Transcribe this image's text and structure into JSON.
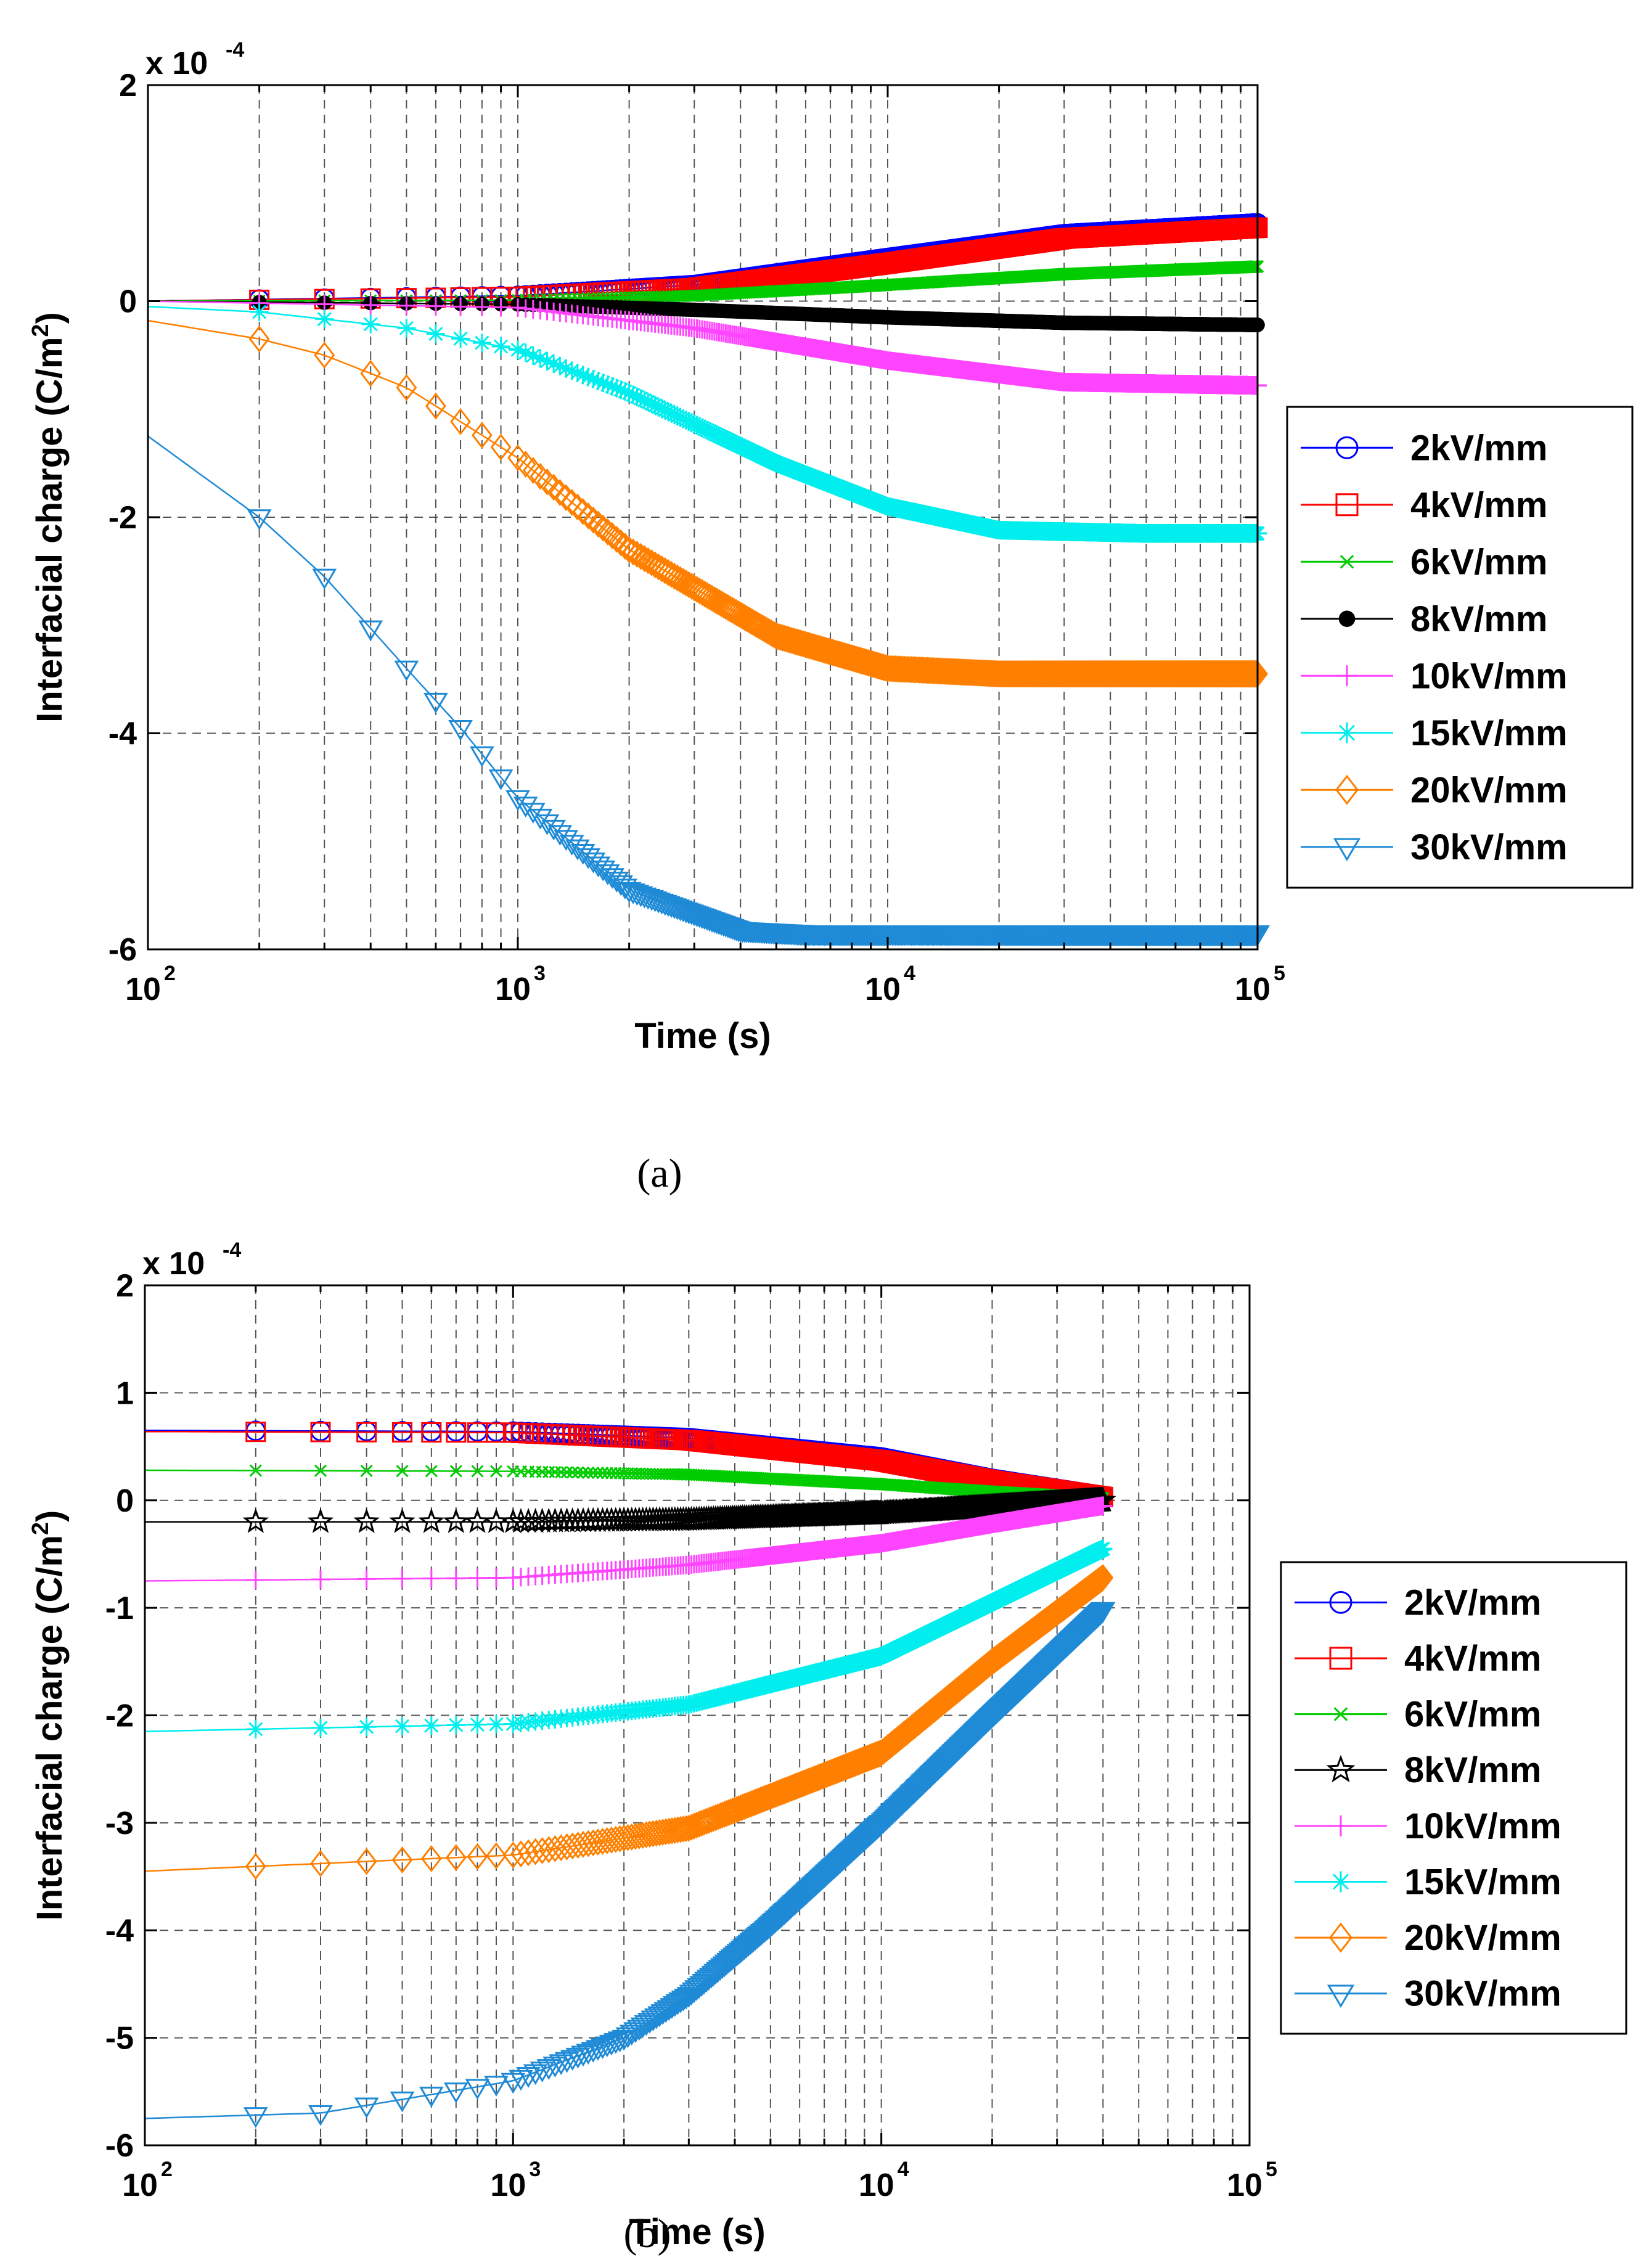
{
  "chart_data": [
    {
      "panel": "a",
      "caption": "(a)",
      "type": "line",
      "xscale": "log",
      "xlim": [
        100,
        100000
      ],
      "ylim": [
        -6,
        2
      ],
      "y_multiplier": "x 10",
      "y_exponent": "-4",
      "xlabel": "Time (s)",
      "ylabel_main": "Interfacial charge (C/m",
      "ylabel_sup": "2",
      "ylabel_end": ")",
      "grid": true,
      "legend_position": "outside-right",
      "x_ticks": [
        {
          "base": "10",
          "exp": "2"
        },
        {
          "base": "10",
          "exp": "3"
        },
        {
          "base": "10",
          "exp": "4"
        },
        {
          "base": "10",
          "exp": "5"
        }
      ],
      "y_ticks": [
        "2",
        "0",
        "-2",
        "-4",
        "-6"
      ],
      "y_tick_values": [
        2,
        0,
        -2,
        -4,
        -6
      ],
      "y_grid_values": [
        -4,
        -2,
        0
      ],
      "series": [
        {
          "name": "2kV/mm",
          "color": "#0000ff",
          "marker": "circle",
          "x": [
            100,
            1000,
            3000,
            10000,
            30000,
            100000
          ],
          "y": [
            0,
            0.05,
            0.15,
            0.4,
            0.62,
            0.72
          ]
        },
        {
          "name": "4kV/mm",
          "color": "#ff0000",
          "marker": "square",
          "x": [
            100,
            1000,
            3000,
            10000,
            30000,
            100000
          ],
          "y": [
            0,
            0.04,
            0.12,
            0.35,
            0.58,
            0.68
          ]
        },
        {
          "name": "6kV/mm",
          "color": "#00cc00",
          "marker": "x",
          "x": [
            100,
            1000,
            3000,
            10000,
            30000,
            100000
          ],
          "y": [
            0,
            0.01,
            0.05,
            0.15,
            0.25,
            0.32
          ]
        },
        {
          "name": "8kV/mm",
          "color": "#000000",
          "marker": "dot",
          "x": [
            100,
            1000,
            3000,
            10000,
            30000,
            100000
          ],
          "y": [
            0,
            -0.03,
            -0.08,
            -0.15,
            -0.2,
            -0.22
          ]
        },
        {
          "name": "10kV/mm",
          "color": "#ff44ff",
          "marker": "plus",
          "x": [
            100,
            1000,
            3000,
            10000,
            30000,
            100000
          ],
          "y": [
            0,
            -0.06,
            -0.25,
            -0.55,
            -0.75,
            -0.78
          ]
        },
        {
          "name": "15kV/mm",
          "color": "#00eeee",
          "marker": "star",
          "x": [
            100,
            200,
            500,
            1000,
            2000,
            5000,
            10000,
            20000,
            50000,
            100000
          ],
          "y": [
            -0.05,
            -0.1,
            -0.25,
            -0.45,
            -0.85,
            -1.5,
            -1.9,
            -2.12,
            -2.15,
            -2.15
          ]
        },
        {
          "name": "20kV/mm",
          "color": "#ff8000",
          "marker": "diamond",
          "x": [
            100,
            200,
            300,
            500,
            1000,
            2000,
            5000,
            10000,
            20000,
            50000,
            100000
          ],
          "y": [
            -0.18,
            -0.35,
            -0.5,
            -0.8,
            -1.45,
            -2.3,
            -3.1,
            -3.4,
            -3.45,
            -3.45,
            -3.45
          ]
        },
        {
          "name": "30kV/mm",
          "color": "#1f8ad6",
          "marker": "triangle-down",
          "x": [
            100,
            200,
            300,
            500,
            700,
            1000,
            2000,
            4000,
            6000,
            10000,
            100000
          ],
          "y": [
            -1.25,
            -2.0,
            -2.55,
            -3.4,
            -3.95,
            -4.6,
            -5.45,
            -5.82,
            -5.85,
            -5.85,
            -5.85
          ]
        }
      ]
    },
    {
      "panel": "b",
      "caption": "(b)",
      "type": "line",
      "xscale": "log",
      "xlim": [
        100,
        100000
      ],
      "ylim": [
        -6,
        2
      ],
      "y_multiplier": "x 10",
      "y_exponent": "-4",
      "xlabel": "Time (s)",
      "ylabel_main": "Interfacial charge (C/m",
      "ylabel_sup": "2",
      "ylabel_end": ")",
      "grid": true,
      "legend_position": "outside-right",
      "x_ticks": [
        {
          "base": "10",
          "exp": "2"
        },
        {
          "base": "10",
          "exp": "3"
        },
        {
          "base": "10",
          "exp": "4"
        },
        {
          "base": "10",
          "exp": "5"
        }
      ],
      "y_ticks": [
        "2",
        "1",
        "0",
        "-1",
        "-2",
        "-3",
        "-4",
        "-5",
        "-6"
      ],
      "y_tick_values": [
        2,
        1,
        0,
        -1,
        -2,
        -3,
        -4,
        -5,
        -6
      ],
      "y_grid_values": [
        -5,
        -4,
        -3,
        -2,
        -1,
        0,
        1
      ],
      "series": [
        {
          "name": "2kV/mm",
          "color": "#0000ff",
          "marker": "circle",
          "x": [
            100,
            1000,
            3000,
            10000,
            20000,
            40000
          ],
          "y": [
            0.65,
            0.64,
            0.58,
            0.4,
            0.2,
            0.04
          ]
        },
        {
          "name": "4kV/mm",
          "color": "#ff0000",
          "marker": "square",
          "x": [
            100,
            1000,
            3000,
            10000,
            20000,
            40000
          ],
          "y": [
            0.64,
            0.63,
            0.56,
            0.37,
            0.18,
            0.03
          ]
        },
        {
          "name": "6kV/mm",
          "color": "#00cc00",
          "marker": "x",
          "x": [
            100,
            1000,
            3000,
            10000,
            20000,
            40000
          ],
          "y": [
            0.28,
            0.27,
            0.24,
            0.15,
            0.08,
            0.02
          ]
        },
        {
          "name": "8kV/mm",
          "color": "#000000",
          "marker": "pentagram",
          "x": [
            100,
            1000,
            3000,
            10000,
            20000,
            40000
          ],
          "y": [
            -0.2,
            -0.2,
            -0.18,
            -0.12,
            -0.06,
            0.0
          ]
        },
        {
          "name": "10kV/mm",
          "color": "#ff44ff",
          "marker": "plus",
          "x": [
            100,
            1000,
            3000,
            10000,
            20000,
            40000
          ],
          "y": [
            -0.75,
            -0.72,
            -0.6,
            -0.4,
            -0.22,
            -0.05
          ]
        },
        {
          "name": "15kV/mm",
          "color": "#00eeee",
          "marker": "star",
          "x": [
            100,
            1000,
            3000,
            10000,
            20000,
            40000
          ],
          "y": [
            -2.15,
            -2.08,
            -1.9,
            -1.45,
            -0.95,
            -0.45
          ]
        },
        {
          "name": "20kV/mm",
          "color": "#ff8000",
          "marker": "diamond",
          "x": [
            100,
            1000,
            3000,
            10000,
            20000,
            40000
          ],
          "y": [
            -3.45,
            -3.3,
            -3.05,
            -2.35,
            -1.5,
            -0.72
          ]
        },
        {
          "name": "30kV/mm",
          "color": "#1f8ad6",
          "marker": "triangle-down",
          "x": [
            100,
            300,
            1000,
            2000,
            3000,
            5000,
            10000,
            20000,
            40000
          ],
          "y": [
            -5.75,
            -5.7,
            -5.4,
            -5.0,
            -4.6,
            -3.95,
            -3.0,
            -2.0,
            -1.02
          ]
        }
      ]
    }
  ]
}
